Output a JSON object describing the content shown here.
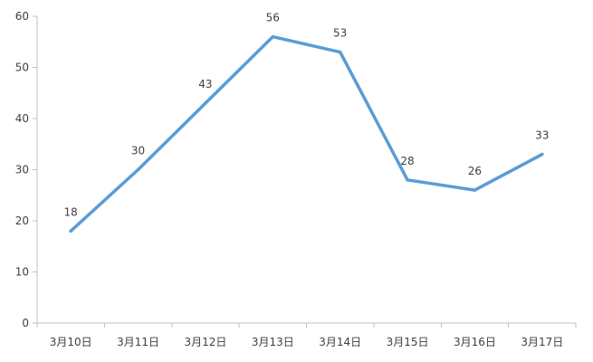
{
  "chart_data": {
    "type": "line",
    "categories": [
      "3月10日",
      "3月11日",
      "3月12日",
      "3月13日",
      "3月14日",
      "3月15日",
      "3月16日",
      "3月17日"
    ],
    "series": [
      {
        "values": [
          18,
          30,
          43,
          56,
          53,
          28,
          26,
          33
        ]
      }
    ],
    "yticks": [
      "0",
      "10",
      "20",
      "30",
      "40",
      "50",
      "60"
    ],
    "ylim": [
      0,
      60
    ],
    "grid": false,
    "legend": "none",
    "data_labels": true,
    "colors": {
      "line": "#5b9bd5",
      "axis": "#bfbfbf",
      "text": "#404040"
    }
  }
}
